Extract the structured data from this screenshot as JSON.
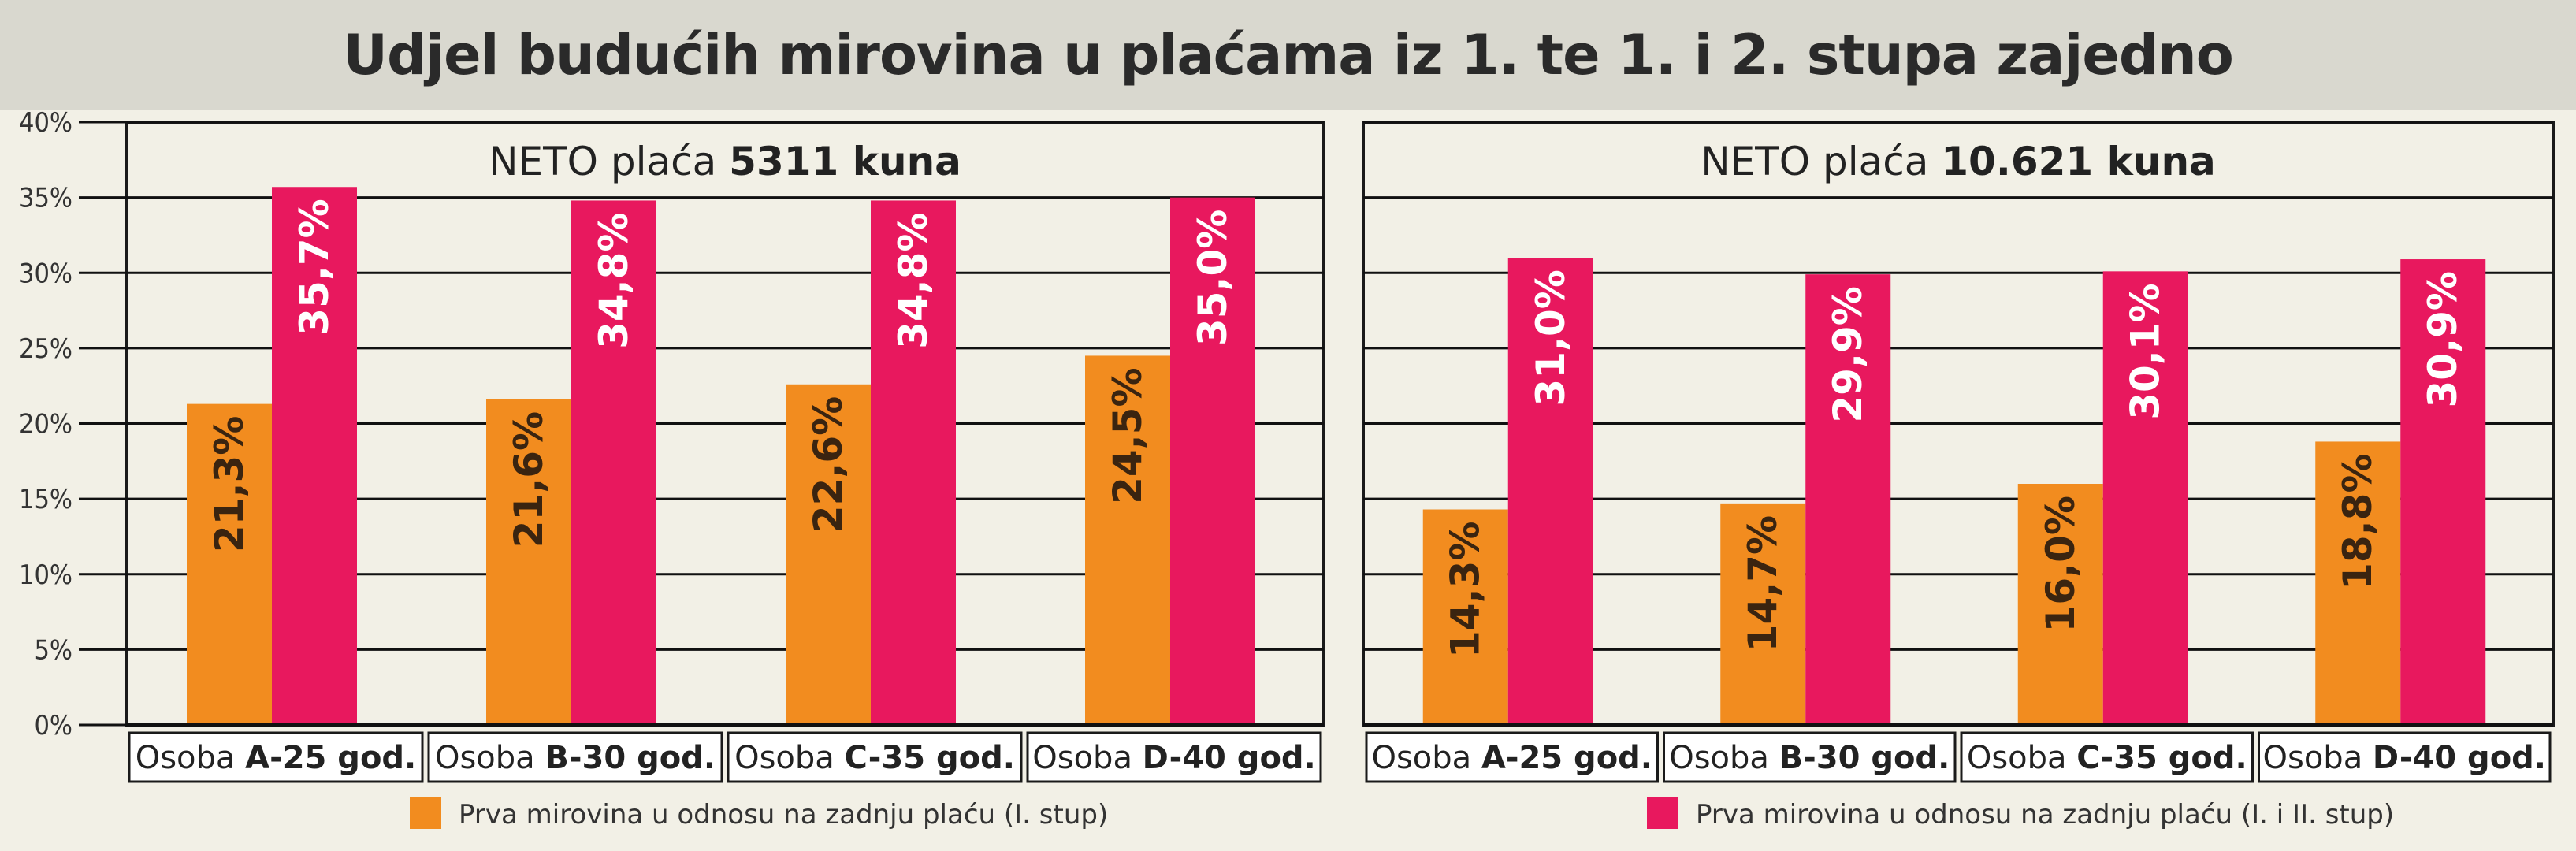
{
  "title": "Udjel budućih mirovina u plaćama iz 1. te 1. i 2. stupa zajedno",
  "colors": {
    "orange": "#f28c1f",
    "pink": "#e8185e",
    "background": "#f2f0e6",
    "title_band": "#d9d8cf",
    "frame": "#1a1a1a",
    "grid": "#111111"
  },
  "chart_data": [
    {
      "type": "bar",
      "panel_title_prefix": "NETO plaća ",
      "panel_title_bold": "5311 kuna",
      "y_ticks": [
        "0%",
        "5%",
        "10%",
        "15%",
        "20%",
        "25%",
        "30%",
        "35%",
        "40%"
      ],
      "ylim": [
        0,
        40
      ],
      "grid": true,
      "categories": [
        {
          "prefix": "Osoba ",
          "bold": "A-25 god."
        },
        {
          "prefix": "Osoba ",
          "bold": "B-30 god."
        },
        {
          "prefix": "Osoba ",
          "bold": "C-35 god."
        },
        {
          "prefix": "Osoba ",
          "bold": "D-40 god."
        }
      ],
      "series": [
        {
          "name": "Prva mirovina u odnosu na zadnju plaću (I. stup)",
          "color": "#f28c1f",
          "values": [
            21.3,
            21.6,
            22.6,
            24.5
          ],
          "labels": [
            "21,3%",
            "21,6%",
            "22,6%",
            "24,5%"
          ]
        },
        {
          "name": "Prva mirovina u odnosu na zadnju plaću (I. i II. stup)",
          "color": "#e8185e",
          "values": [
            35.7,
            34.8,
            34.8,
            35.0
          ],
          "labels": [
            "35,7%",
            "34,8%",
            "34,8%",
            "35,0%"
          ]
        }
      ]
    },
    {
      "type": "bar",
      "panel_title_prefix": "NETO plaća ",
      "panel_title_bold": "10.621 kuna",
      "ylim": [
        0,
        40
      ],
      "grid": true,
      "categories": [
        {
          "prefix": "Osoba ",
          "bold": "A-25 god."
        },
        {
          "prefix": "Osoba ",
          "bold": "B-30 god."
        },
        {
          "prefix": "Osoba ",
          "bold": "C-35 god."
        },
        {
          "prefix": "Osoba ",
          "bold": "D-40 god."
        }
      ],
      "series": [
        {
          "name": "Prva mirovina u odnosu na zadnju plaću (I. stup)",
          "color": "#f28c1f",
          "values": [
            14.3,
            14.7,
            16.0,
            18.8
          ],
          "labels": [
            "14,3%",
            "14,7%",
            "16,0%",
            "18,8%"
          ]
        },
        {
          "name": "Prva mirovina u odnosu na zadnju plaću (I. i II. stup)",
          "color": "#e8185e",
          "values": [
            31.0,
            29.9,
            30.1,
            30.9
          ],
          "labels": [
            "31,0%",
            "29,9%",
            "30,1%",
            "30,9%"
          ]
        }
      ]
    }
  ]
}
